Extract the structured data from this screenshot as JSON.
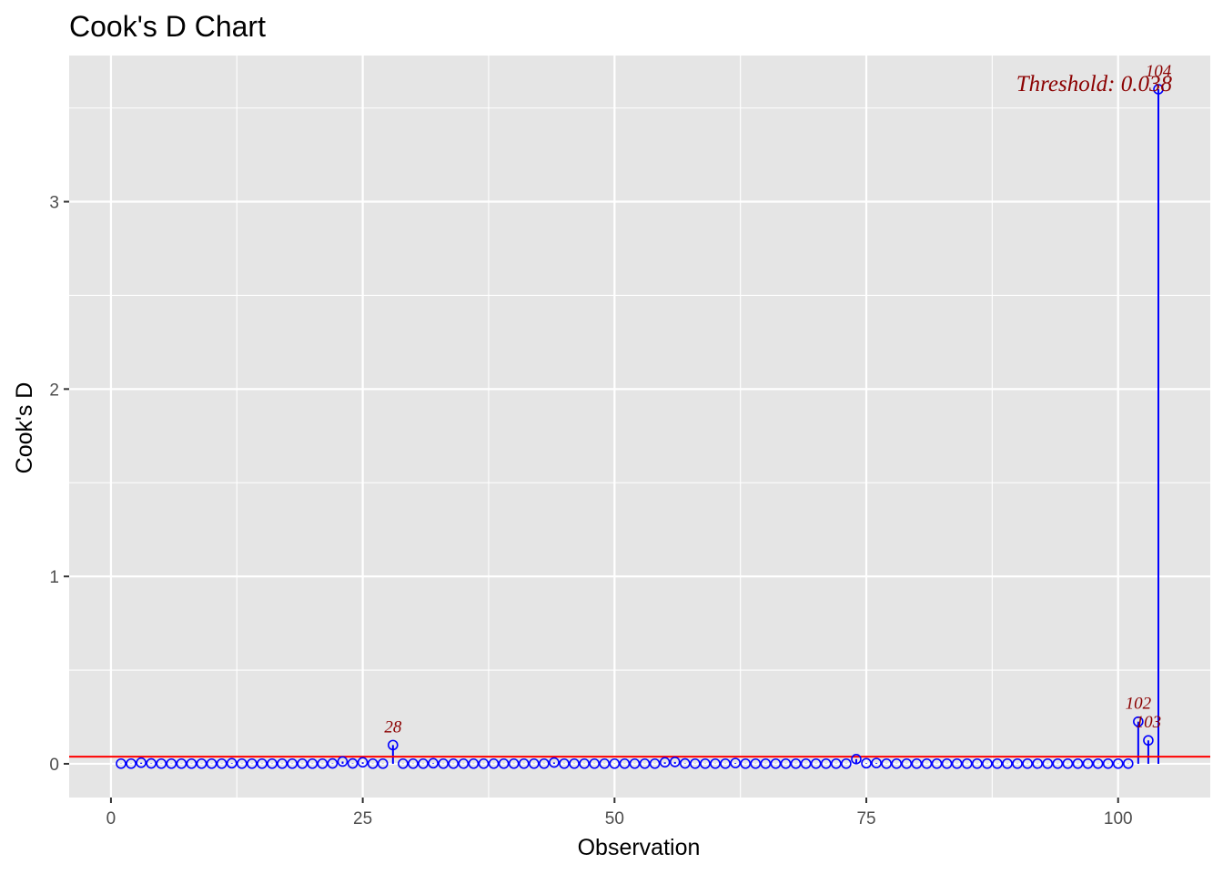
{
  "chart_data": {
    "type": "scatter",
    "title": "Cook's D Chart",
    "xlabel": "Observation",
    "ylabel": "Cook's D",
    "xlim": [
      -4.15,
      109.15
    ],
    "ylim": [
      -0.18,
      3.78
    ],
    "x_ticks": [
      0,
      25,
      50,
      75,
      100
    ],
    "y_ticks": [
      0,
      1,
      2,
      3
    ],
    "x_tick_labels": [
      "0",
      "25",
      "50",
      "75",
      "100"
    ],
    "y_tick_labels": [
      "0",
      "1",
      "2",
      "3"
    ],
    "grid": true,
    "legend": "none",
    "colors": {
      "panel": "#e5e5e5",
      "grid": "#ffffff",
      "point": "#0000ff",
      "threshold": "#ff0000",
      "label": "#8b0000"
    },
    "threshold": {
      "value": 0.038,
      "label": "Threshold: 0.038"
    },
    "series": [
      {
        "x": [
          1,
          2,
          3,
          4,
          5,
          6,
          7,
          8,
          9,
          10,
          11,
          12,
          13,
          14,
          15,
          16,
          17,
          18,
          19,
          20,
          21,
          22,
          23,
          24,
          25,
          26,
          27,
          28,
          29,
          30,
          31,
          32,
          33,
          34,
          35,
          36,
          37,
          38,
          39,
          40,
          41,
          42,
          43,
          44,
          45,
          46,
          47,
          48,
          49,
          50,
          51,
          52,
          53,
          54,
          55,
          56,
          57,
          58,
          59,
          60,
          61,
          62,
          63,
          64,
          65,
          66,
          67,
          68,
          69,
          70,
          71,
          72,
          73,
          74,
          75,
          76,
          77,
          78,
          79,
          80,
          81,
          82,
          83,
          84,
          85,
          86,
          87,
          88,
          89,
          90,
          91,
          92,
          93,
          94,
          95,
          96,
          97,
          98,
          99,
          100,
          101,
          102,
          103,
          104
        ],
        "values": [
          0.001,
          0.001,
          0.006,
          0.002,
          0.001,
          0.001,
          0.001,
          0.001,
          0.001,
          0.001,
          0.001,
          0.003,
          0.001,
          0.001,
          0.001,
          0.001,
          0.001,
          0.001,
          0.001,
          0.001,
          0.001,
          0.002,
          0.012,
          0.002,
          0.008,
          0.001,
          0.001,
          0.1,
          0.001,
          0.001,
          0.001,
          0.003,
          0.001,
          0.001,
          0.001,
          0.001,
          0.001,
          0.001,
          0.001,
          0.001,
          0.001,
          0.001,
          0.001,
          0.007,
          0.001,
          0.001,
          0.001,
          0.001,
          0.001,
          0.001,
          0.001,
          0.001,
          0.001,
          0.001,
          0.008,
          0.01,
          0.002,
          0.001,
          0.001,
          0.001,
          0.001,
          0.004,
          0.001,
          0.001,
          0.001,
          0.001,
          0.001,
          0.001,
          0.001,
          0.001,
          0.001,
          0.001,
          0.001,
          0.025,
          0.003,
          0.004,
          0.001,
          0.001,
          0.001,
          0.001,
          0.001,
          0.001,
          0.001,
          0.001,
          0.001,
          0.001,
          0.001,
          0.001,
          0.001,
          0.001,
          0.001,
          0.001,
          0.001,
          0.001,
          0.001,
          0.001,
          0.001,
          0.001,
          0.001,
          0.001,
          0.001,
          0.225,
          0.125,
          3.6
        ]
      }
    ],
    "point_labels": [
      {
        "x": 28,
        "y": 0.1,
        "text": "28"
      },
      {
        "x": 102,
        "y": 0.225,
        "text": "102"
      },
      {
        "x": 103,
        "y": 0.125,
        "text": "103"
      },
      {
        "x": 104,
        "y": 3.6,
        "text": "104"
      }
    ]
  }
}
